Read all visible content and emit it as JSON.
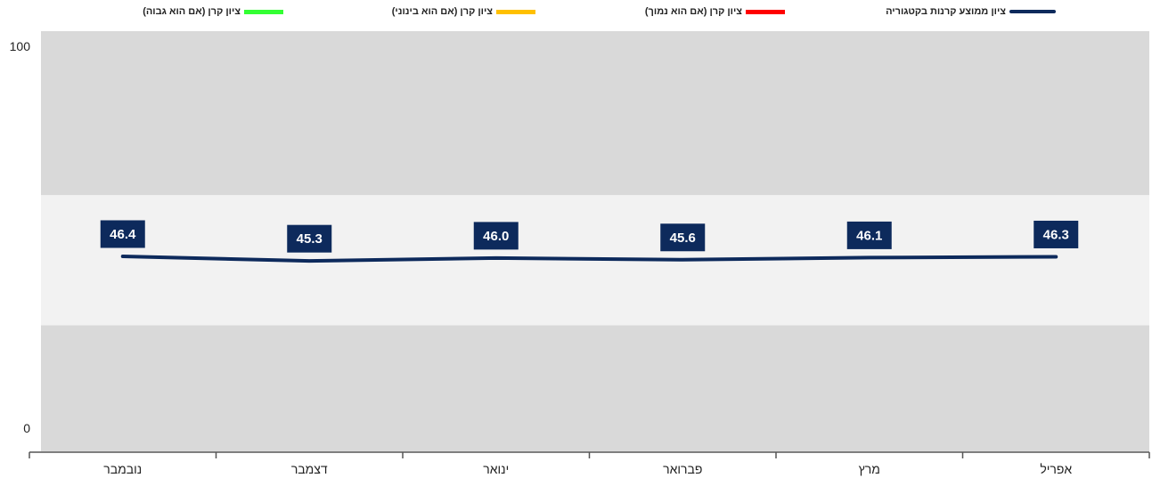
{
  "legend": {
    "items": [
      {
        "label": "ציון ממוצע קרנות בקטגוריה",
        "color": "#0d2a5c",
        "swatch": "thick-line"
      },
      {
        "label": "ציון קרן (אם הוא נמוך)",
        "color": "#ff0000",
        "swatch": "bar"
      },
      {
        "label": "ציון קרן (אם הוא בינוני)",
        "color": "#ffc000",
        "swatch": "bar"
      },
      {
        "label": "ציון קרן (אם הוא גבוה)",
        "color": "#33ff33",
        "swatch": "bar"
      }
    ]
  },
  "colors": {
    "band_outer": "#d9d9d9",
    "band_middle": "#f2f2f2",
    "line": "#0d2a5c",
    "label_box": "#0d2a5c",
    "axis": "#555555"
  },
  "chart_data": {
    "type": "line",
    "categories": [
      "נובמבר",
      "דצמבר",
      "ינואר",
      "פברואר",
      "מרץ",
      "אפריל"
    ],
    "series": [
      {
        "name": "ציון ממוצע קרנות בקטגוריה",
        "values": [
          46.4,
          45.3,
          46.0,
          45.6,
          46.1,
          46.3
        ]
      }
    ],
    "data_labels": [
      "46.4",
      "45.3",
      "46.0",
      "45.6",
      "46.1",
      "46.3"
    ],
    "bands": [
      {
        "from": 0,
        "to": 30
      },
      {
        "from": 30,
        "to": 61
      },
      {
        "from": 61,
        "to": 100
      }
    ],
    "ylim": [
      0,
      100
    ],
    "yticks": [
      "0",
      "100"
    ],
    "title": "",
    "xlabel": "",
    "ylabel": "",
    "legend_position": "top",
    "grid": false
  }
}
